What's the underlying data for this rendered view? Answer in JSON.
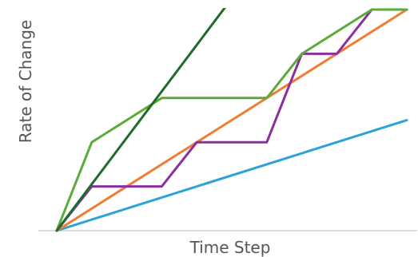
{
  "chart_data": {
    "type": "line",
    "title": "",
    "xlabel": "Time Step",
    "ylabel": "Rate of Change",
    "xlim": [
      0,
      10
    ],
    "ylim": [
      0,
      10
    ],
    "grid": false,
    "legend": "none",
    "series": [
      {
        "color": "#2ba3d4",
        "x": [
          0,
          10
        ],
        "y": [
          0,
          5
        ]
      },
      {
        "color": "#ee7d35",
        "x": [
          0,
          10
        ],
        "y": [
          0,
          10
        ]
      },
      {
        "color": "#8d2ea0",
        "x": [
          0,
          1,
          3,
          4,
          6,
          7,
          8,
          9,
          10
        ],
        "y": [
          0,
          2,
          2,
          4,
          4,
          8,
          8,
          10,
          10
        ]
      },
      {
        "color": "#5aab3a",
        "x": [
          0,
          1,
          3,
          6,
          7,
          9,
          10
        ],
        "y": [
          0,
          4,
          6,
          6,
          8,
          10,
          10
        ]
      },
      {
        "color": "#1f6b2e",
        "x": [
          0,
          5
        ],
        "y": [
          0,
          10.5
        ]
      }
    ]
  }
}
